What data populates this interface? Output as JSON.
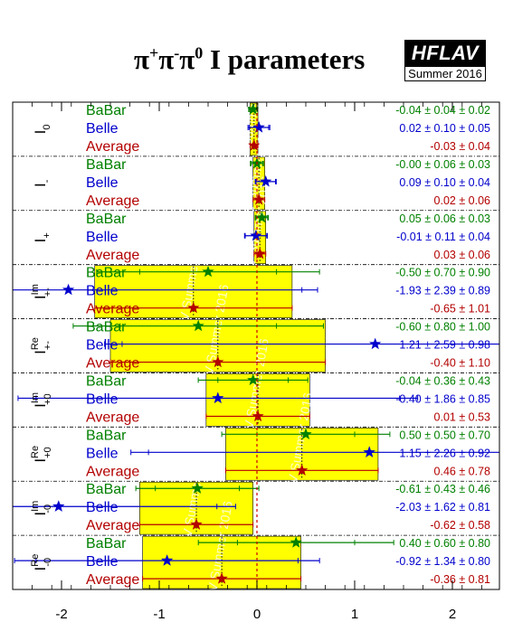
{
  "title": {
    "prefix": "π",
    "sup1": "+",
    "p2": "π",
    "sup2": "-",
    "p3": "π",
    "sup3": "0",
    "suffix": " I parameters"
  },
  "logo": {
    "name": "HFLAV",
    "subtitle": "Summer 2016"
  },
  "watermark": "HFLAV Summer 2016",
  "colors": {
    "BaBar": "#008000",
    "Belle": "#0000cc",
    "Average": "#b30000",
    "band": "#ffff00"
  },
  "chart_data": {
    "type": "scatter",
    "title": "π+π-π0 I parameters",
    "xlim": [
      -2.5,
      2.5
    ],
    "xticks": [
      "-2",
      "-1",
      "0",
      "1",
      "2"
    ],
    "groups": [
      {
        "label": "I",
        "sub": "0",
        "sup": "",
        "rows": [
          {
            "exp": "BaBar",
            "value": -0.04,
            "stat": 0.04,
            "syst": 0.02,
            "text": "-0.04 ± 0.04 ± 0.02"
          },
          {
            "exp": "Belle",
            "value": 0.02,
            "stat": 0.1,
            "syst": 0.05,
            "text": "0.02 ± 0.10 ± 0.05"
          },
          {
            "exp": "Average",
            "value": -0.03,
            "err": 0.04,
            "text": "-0.03 ± 0.04"
          }
        ]
      },
      {
        "label": "I",
        "sub": "-",
        "sup": "",
        "rows": [
          {
            "exp": "BaBar",
            "value": -0.0,
            "stat": 0.06,
            "syst": 0.03,
            "text": "-0.00 ± 0.06 ± 0.03"
          },
          {
            "exp": "Belle",
            "value": 0.09,
            "stat": 0.1,
            "syst": 0.04,
            "text": "0.09 ± 0.10 ± 0.04"
          },
          {
            "exp": "Average",
            "value": 0.02,
            "err": 0.06,
            "text": "0.02 ± 0.06"
          }
        ]
      },
      {
        "label": "I",
        "sub": "+",
        "sup": "",
        "rows": [
          {
            "exp": "BaBar",
            "value": 0.05,
            "stat": 0.06,
            "syst": 0.03,
            "text": "0.05 ± 0.06 ± 0.03"
          },
          {
            "exp": "Belle",
            "value": -0.01,
            "stat": 0.11,
            "syst": 0.04,
            "text": "-0.01 ± 0.11 ± 0.04"
          },
          {
            "exp": "Average",
            "value": 0.03,
            "err": 0.06,
            "text": "0.03 ± 0.06"
          }
        ]
      },
      {
        "label": "I",
        "sub": "+-",
        "sup": "Im",
        "rows": [
          {
            "exp": "BaBar",
            "value": -0.5,
            "stat": 0.7,
            "syst": 0.9,
            "text": "-0.50 ± 0.70 ± 0.90"
          },
          {
            "exp": "Belle",
            "value": -1.93,
            "stat": 2.39,
            "syst": 0.89,
            "text": "-1.93 ± 2.39 ± 0.89"
          },
          {
            "exp": "Average",
            "value": -0.65,
            "err": 1.01,
            "text": "-0.65 ± 1.01"
          }
        ]
      },
      {
        "label": "I",
        "sub": "+-",
        "sup": "Re",
        "rows": [
          {
            "exp": "BaBar",
            "value": -0.6,
            "stat": 0.8,
            "syst": 1.0,
            "text": "-0.60 ± 0.80 ± 1.00"
          },
          {
            "exp": "Belle",
            "value": 1.21,
            "stat": 2.59,
            "syst": 0.98,
            "text": "1.21 ± 2.59 ± 0.98"
          },
          {
            "exp": "Average",
            "value": -0.4,
            "err": 1.1,
            "text": "-0.40 ± 1.10"
          }
        ]
      },
      {
        "label": "I",
        "sub": "+0",
        "sup": "Im",
        "rows": [
          {
            "exp": "BaBar",
            "value": -0.04,
            "stat": 0.36,
            "syst": 0.43,
            "text": "-0.04 ± 0.36 ± 0.43"
          },
          {
            "exp": "Belle",
            "value": -0.4,
            "stat": 1.86,
            "syst": 0.85,
            "text": "-0.40 ± 1.86 ± 0.85"
          },
          {
            "exp": "Average",
            "value": 0.01,
            "err": 0.53,
            "text": "0.01 ± 0.53"
          }
        ]
      },
      {
        "label": "I",
        "sub": "+0",
        "sup": "Re",
        "rows": [
          {
            "exp": "BaBar",
            "value": 0.5,
            "stat": 0.5,
            "syst": 0.7,
            "text": "0.50 ± 0.50 ± 0.70"
          },
          {
            "exp": "Belle",
            "value": 1.15,
            "stat": 2.26,
            "syst": 0.92,
            "text": "1.15 ± 2.26 ± 0.92"
          },
          {
            "exp": "Average",
            "value": 0.46,
            "err": 0.78,
            "text": "0.46 ± 0.78"
          }
        ]
      },
      {
        "label": "I",
        "sub": "-0",
        "sup": "Im",
        "rows": [
          {
            "exp": "BaBar",
            "value": -0.61,
            "stat": 0.43,
            "syst": 0.46,
            "text": "-0.61 ± 0.43 ± 0.46"
          },
          {
            "exp": "Belle",
            "value": -2.03,
            "stat": 1.62,
            "syst": 0.81,
            "text": "-2.03 ± 1.62 ± 0.81"
          },
          {
            "exp": "Average",
            "value": -0.62,
            "err": 0.58,
            "text": "-0.62 ± 0.58"
          }
        ]
      },
      {
        "label": "I",
        "sub": "-0",
        "sup": "Re",
        "rows": [
          {
            "exp": "BaBar",
            "value": 0.4,
            "stat": 0.6,
            "syst": 0.8,
            "text": "0.40 ± 0.60 ± 0.80"
          },
          {
            "exp": "Belle",
            "value": -0.92,
            "stat": 1.34,
            "syst": 0.8,
            "text": "-0.92 ± 1.34 ± 0.80"
          },
          {
            "exp": "Average",
            "value": -0.36,
            "err": 0.81,
            "text": "-0.36 ± 0.81"
          }
        ]
      }
    ]
  }
}
